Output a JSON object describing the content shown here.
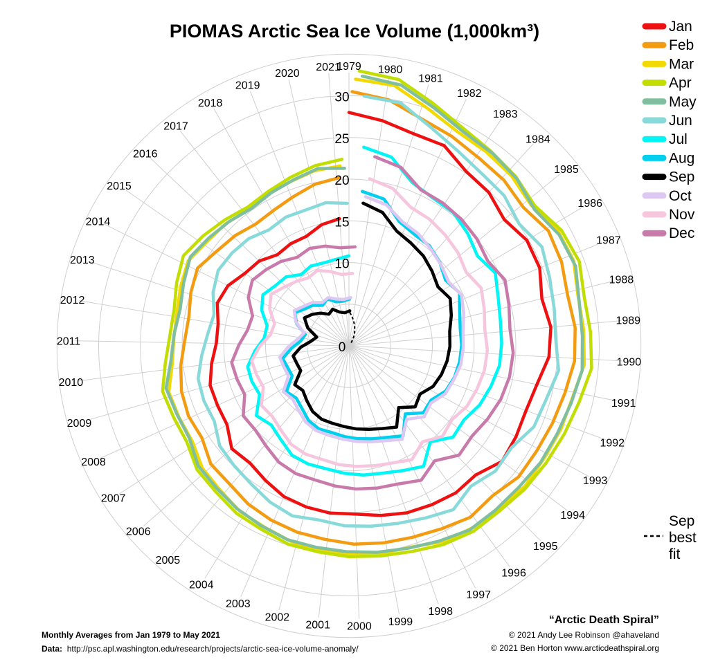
{
  "chart_data": {
    "type": "line",
    "subtype": "polar-spiral",
    "title": "PIOMAS Arctic Sea Ice Volume (1,000km³)",
    "radial_axis": {
      "range": [
        0,
        35
      ],
      "ticks": [
        0,
        10,
        15,
        20,
        25,
        30
      ],
      "grid": true
    },
    "years": [
      "1979",
      "1980",
      "1981",
      "1982",
      "1983",
      "1984",
      "1985",
      "1986",
      "1987",
      "1988",
      "1989",
      "1990",
      "1991",
      "1992",
      "1993",
      "1994",
      "1995",
      "1996",
      "1997",
      "1998",
      "1999",
      "2000",
      "2001",
      "2002",
      "2003",
      "2004",
      "2005",
      "2006",
      "2007",
      "2008",
      "2009",
      "2010",
      "2011",
      "2012",
      "2013",
      "2014",
      "2015",
      "2016",
      "2017",
      "2018",
      "2019",
      "2020",
      "2021"
    ],
    "legend": {
      "position": "top-right"
    },
    "series": [
      {
        "name": "Jan",
        "color": "#ee1111",
        "values": [
          28.0,
          27.3,
          26.6,
          26.6,
          25.2,
          24.9,
          24.0,
          24.8,
          24.7,
          23.8,
          24.3,
          24.0,
          23.0,
          22.6,
          22.8,
          23.0,
          21.7,
          21.8,
          21.5,
          21.2,
          20.7,
          20.2,
          20.2,
          20.0,
          19.7,
          19.0,
          18.4,
          18.7,
          17.4,
          17.3,
          17.3,
          16.6,
          15.9,
          15.9,
          16.6,
          16.2,
          15.2,
          14.8,
          13.9,
          14.1,
          14.1,
          14.9,
          15.3
        ]
      },
      {
        "name": "Feb",
        "color": "#f39c12",
        "values": [
          30.5,
          29.9,
          28.6,
          28.0,
          27.4,
          27.2,
          26.7,
          27.6,
          27.4,
          26.9,
          27.2,
          27.1,
          26.5,
          26.1,
          25.8,
          25.7,
          24.9,
          25.2,
          24.6,
          24.2,
          24.0,
          23.8,
          23.4,
          23.2,
          22.9,
          22.5,
          21.9,
          21.8,
          20.8,
          21.0,
          20.8,
          20.3,
          19.7,
          19.5,
          20.0,
          20.4,
          19.5,
          19.0,
          18.4,
          18.6,
          19.1,
          19.8,
          20.2
        ]
      },
      {
        "name": "Mar",
        "color": "#f2d900",
        "values": [
          32.0,
          31.7,
          30.0,
          28.8,
          28.5,
          28.2,
          27.6,
          28.6,
          28.8,
          28.1,
          28.2,
          28.3,
          27.5,
          27.3,
          27.0,
          27.0,
          26.5,
          26.4,
          26.1,
          25.3,
          25.2,
          25.0,
          24.8,
          24.5,
          24.0,
          23.8,
          23.2,
          22.9,
          22.0,
          22.1,
          22.3,
          21.3,
          21.0,
          21.0,
          21.4,
          21.8,
          21.1,
          20.8,
          20.3,
          20.6,
          20.9,
          21.4,
          21.6
        ]
      },
      {
        "name": "Apr",
        "color": "#c2dd00",
        "values": [
          33.0,
          32.5,
          30.8,
          29.5,
          28.9,
          28.5,
          27.9,
          29.0,
          29.4,
          28.8,
          29.0,
          29.2,
          28.4,
          27.9,
          27.5,
          27.2,
          26.8,
          26.8,
          26.4,
          25.8,
          25.5,
          25.3,
          25.0,
          24.9,
          24.4,
          24.2,
          23.7,
          23.5,
          22.6,
          22.7,
          23.0,
          22.1,
          21.5,
          21.4,
          22.0,
          22.6,
          21.9,
          21.2,
          20.6,
          20.9,
          21.4,
          22.0,
          22.4
        ]
      },
      {
        "name": "May",
        "color": "#7fbf9f",
        "values": [
          32.4,
          31.9,
          30.3,
          29.1,
          28.8,
          28.4,
          27.6,
          28.5,
          28.8,
          28.1,
          28.0,
          28.1,
          27.5,
          27.1,
          26.9,
          26.5,
          26.4,
          26.4,
          25.8,
          25.3,
          25.0,
          24.7,
          24.5,
          24.4,
          24.0,
          23.7,
          23.3,
          23.1,
          22.1,
          22.2,
          22.5,
          21.4,
          21.0,
          20.7,
          21.2,
          21.8,
          21.2,
          20.7,
          20.2,
          20.6,
          21.0,
          21.6,
          21.3
        ]
      },
      {
        "name": "Jun",
        "color": "#88dada",
        "values": [
          30.0,
          29.8,
          28.0,
          26.8,
          26.1,
          25.9,
          25.1,
          26.0,
          25.4,
          25.0,
          24.8,
          25.3,
          24.5,
          24.2,
          23.0,
          23.1,
          22.3,
          23.3,
          22.6,
          22.1,
          21.8,
          21.6,
          21.2,
          21.5,
          21.0,
          20.3,
          19.9,
          19.6,
          18.5,
          18.6,
          18.5,
          17.7,
          17.0,
          16.6,
          17.5,
          18.1,
          17.9,
          17.6,
          16.9,
          17.2,
          17.1,
          17.4,
          17.1
        ]
      },
      {
        "name": "Jul",
        "color": "#00f5f5",
        "values": [
          23.9,
          23.2,
          21.0,
          20.4,
          20.3,
          19.6,
          18.8,
          19.6,
          18.8,
          18.4,
          18.3,
          18.2,
          17.7,
          17.2,
          16.4,
          16.6,
          15.1,
          17.0,
          16.3,
          15.8,
          15.6,
          15.3,
          15.0,
          15.0,
          14.8,
          13.9,
          13.3,
          13.9,
          12.2,
          12.4,
          12.4,
          11.3,
          10.2,
          10.1,
          11.3,
          12.0,
          11.4,
          11.2,
          10.3,
          10.6,
          10.4,
          10.5,
          10.8
        ]
      },
      {
        "name": "Aug",
        "color": "#00d0ee",
        "values": [
          18.6,
          18.1,
          16.1,
          15.5,
          15.4,
          14.8,
          14.0,
          14.7,
          13.9,
          13.5,
          13.5,
          13.4,
          13.2,
          12.8,
          11.8,
          12.0,
          10.6,
          12.6,
          11.9,
          11.5,
          11.2,
          10.9,
          10.6,
          10.6,
          10.2,
          9.4,
          8.9,
          9.3,
          7.7,
          7.8,
          8.1,
          6.9,
          5.8,
          5.4,
          6.8,
          7.6,
          6.9,
          6.5,
          5.8,
          6.2,
          5.5,
          5.4,
          5.6
        ]
      },
      {
        "name": "Sep",
        "color": "#000000",
        "values": [
          17.2,
          16.5,
          14.9,
          14.4,
          14.0,
          13.4,
          12.8,
          13.4,
          12.8,
          12.2,
          12.1,
          11.9,
          11.6,
          11.2,
          10.3,
          10.8,
          9.5,
          11.3,
          10.7,
          10.3,
          10.0,
          9.7,
          9.5,
          9.4,
          9.0,
          8.3,
          7.7,
          8.0,
          6.5,
          6.6,
          6.8,
          5.8,
          4.6,
          4.0,
          5.4,
          6.3,
          5.8,
          5.2,
          4.5,
          4.8,
          4.2,
          4.0,
          4.2
        ]
      },
      {
        "name": "Oct",
        "color": "#dcc8f2",
        "values": [
          18.0,
          17.5,
          16.2,
          15.8,
          15.2,
          14.7,
          14.2,
          14.8,
          14.3,
          13.8,
          13.7,
          13.6,
          13.2,
          12.9,
          12.0,
          12.4,
          11.2,
          12.9,
          12.2,
          11.8,
          11.5,
          11.2,
          11.0,
          10.9,
          10.5,
          9.8,
          9.3,
          9.6,
          8.1,
          8.2,
          8.4,
          7.3,
          6.2,
          5.6,
          7.0,
          7.8,
          7.2,
          6.8,
          6.1,
          6.3,
          5.8,
          5.6,
          5.8
        ]
      },
      {
        "name": "Nov",
        "color": "#f5c6de",
        "values": [
          20.2,
          19.6,
          18.2,
          18.0,
          17.6,
          17.2,
          16.6,
          17.3,
          16.8,
          16.4,
          16.6,
          16.5,
          16.2,
          15.9,
          15.2,
          15.6,
          14.5,
          15.6,
          15.0,
          14.7,
          14.5,
          14.3,
          14.0,
          14.0,
          13.7,
          13.0,
          12.5,
          12.7,
          11.4,
          11.6,
          11.8,
          10.7,
          9.5,
          9.3,
          10.5,
          11.2,
          10.5,
          10.0,
          9.5,
          9.8,
          9.2,
          8.6,
          8.7
        ]
      },
      {
        "name": "Dec",
        "color": "#c87aaa",
        "values": [
          22.9,
          22.3,
          20.6,
          20.5,
          20.3,
          20.0,
          19.5,
          20.3,
          19.8,
          19.4,
          19.7,
          19.6,
          19.3,
          18.8,
          18.3,
          18.6,
          17.2,
          18.3,
          17.6,
          17.4,
          17.2,
          16.9,
          16.6,
          16.6,
          16.3,
          15.6,
          15.1,
          15.2,
          13.8,
          14.0,
          14.2,
          13.2,
          12.3,
          12.1,
          13.4,
          14.0,
          13.5,
          13.0,
          12.3,
          12.6,
          12.3,
          11.8,
          11.9
        ]
      }
    ],
    "best_fit": {
      "label": "Sep best fit",
      "label_lines": [
        "Sep",
        "best",
        "fit"
      ],
      "style": "dashed",
      "color": "#000000"
    }
  },
  "footer": {
    "left_line1": "Monthly Averages from Jan 1979 to May 2021",
    "left_line2_label": "Data:",
    "left_line2_url": "http://psc.apl.washington.edu/research/projects/arctic-sea-ice-volume-anomaly/",
    "credit_title": "“Arctic Death Spiral”",
    "credit_line1": "© 2021 Andy Lee Robinson @ahaveland",
    "credit_line2": "© 2021 Ben Horton www.arcticdeathspiral.org"
  }
}
